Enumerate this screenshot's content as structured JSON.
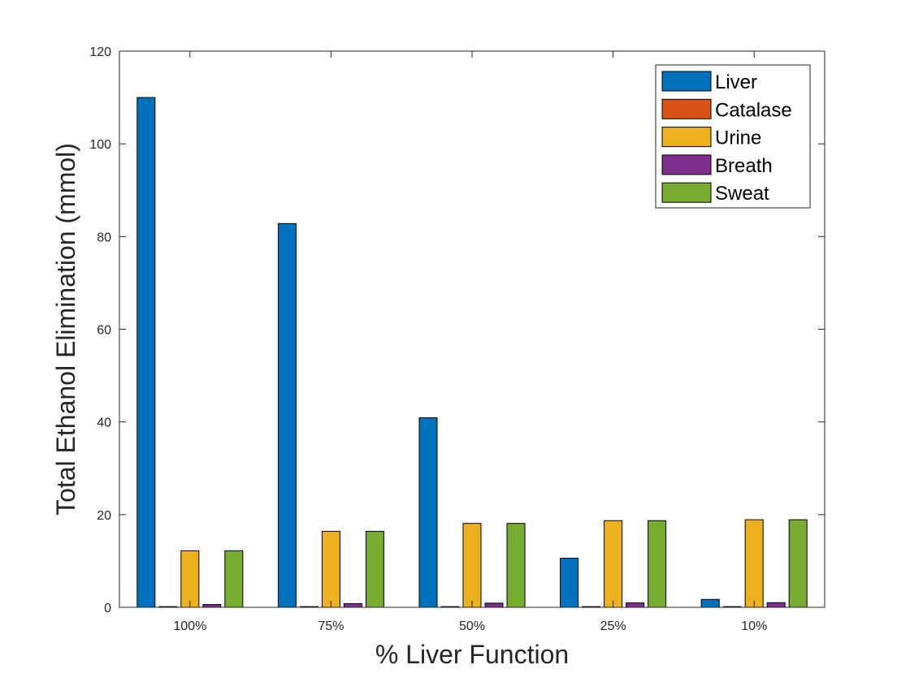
{
  "chart_data": {
    "type": "bar",
    "title": "",
    "xlabel": "% Liver Function",
    "ylabel": "Total Ethanol Elimination (mmol)",
    "categories": [
      "100%",
      "75%",
      "50%",
      "25%",
      "10%"
    ],
    "ylim": [
      0,
      120
    ],
    "yticks": [
      0,
      20,
      40,
      60,
      80,
      100,
      120
    ],
    "grid": false,
    "legend_position": "top-right",
    "series": [
      {
        "name": "Liver",
        "color": "#0072BD",
        "values": [
          110,
          82.8,
          40.9,
          10.6,
          1.7
        ]
      },
      {
        "name": "Catalase",
        "color": "#D95319",
        "values": [
          0.15,
          0.15,
          0.15,
          0.15,
          0.15
        ]
      },
      {
        "name": "Urine",
        "color": "#EDB120",
        "values": [
          12.2,
          16.4,
          18.1,
          18.7,
          18.9
        ]
      },
      {
        "name": "Breath",
        "color": "#7E2F8E",
        "values": [
          0.6,
          0.8,
          0.9,
          0.95,
          1.0
        ]
      },
      {
        "name": "Sweat",
        "color": "#77AC30",
        "values": [
          12.2,
          16.4,
          18.1,
          18.7,
          18.9
        ]
      }
    ]
  }
}
